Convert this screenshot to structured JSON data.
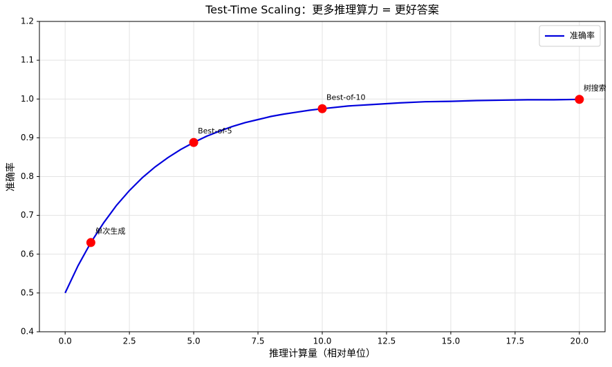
{
  "chart_data": {
    "type": "line",
    "title": "Test-Time Scaling：更多推理算力 = 更好答案",
    "x_label": "推理计算量（相对单位）",
    "y_label": "准确率",
    "x": [
      0,
      0.5,
      1,
      1.5,
      2,
      2.5,
      3,
      3.5,
      4,
      4.5,
      5,
      5.5,
      6,
      6.5,
      7,
      7.5,
      8,
      8.5,
      9,
      9.5,
      10,
      11,
      12,
      13,
      14,
      15,
      16,
      17,
      18,
      19,
      20
    ],
    "series": [
      {
        "name": "准确率",
        "color": "#0000dd",
        "values": [
          0.5,
          0.57,
          0.63,
          0.681,
          0.726,
          0.764,
          0.797,
          0.825,
          0.849,
          0.87,
          0.888,
          0.904,
          0.917,
          0.929,
          0.939,
          0.947,
          0.955,
          0.961,
          0.966,
          0.971,
          0.975,
          0.982,
          0.986,
          0.99,
          0.993,
          0.994,
          0.996,
          0.997,
          0.998,
          0.998,
          0.999
        ]
      }
    ],
    "points": {
      "color": "#ff0000",
      "x": [
        1,
        5,
        10,
        20
      ],
      "values": [
        0.63,
        0.888,
        0.975,
        0.999
      ],
      "labels": [
        "单次生成",
        "Best-of-5",
        "Best-of-10",
        "树搜索"
      ]
    },
    "xlim": [
      -1,
      21
    ],
    "ylim": [
      0.4,
      1.2
    ],
    "xticks": [
      {
        "value": 0,
        "label": "0.0"
      },
      {
        "value": 2.5,
        "label": "2.5"
      },
      {
        "value": 5,
        "label": "5.0"
      },
      {
        "value": 7.5,
        "label": "7.5"
      },
      {
        "value": 10,
        "label": "10.0"
      },
      {
        "value": 12.5,
        "label": "12.5"
      },
      {
        "value": 15,
        "label": "15.0"
      },
      {
        "value": 17.5,
        "label": "17.5"
      },
      {
        "value": 20,
        "label": "20.0"
      }
    ],
    "yticks": [
      0.4,
      0.5,
      0.6,
      0.7,
      0.8,
      0.9,
      {
        "value": 1,
        "label": "1.0"
      },
      1.1,
      1.2
    ],
    "grid": true,
    "legend": "upper right"
  }
}
